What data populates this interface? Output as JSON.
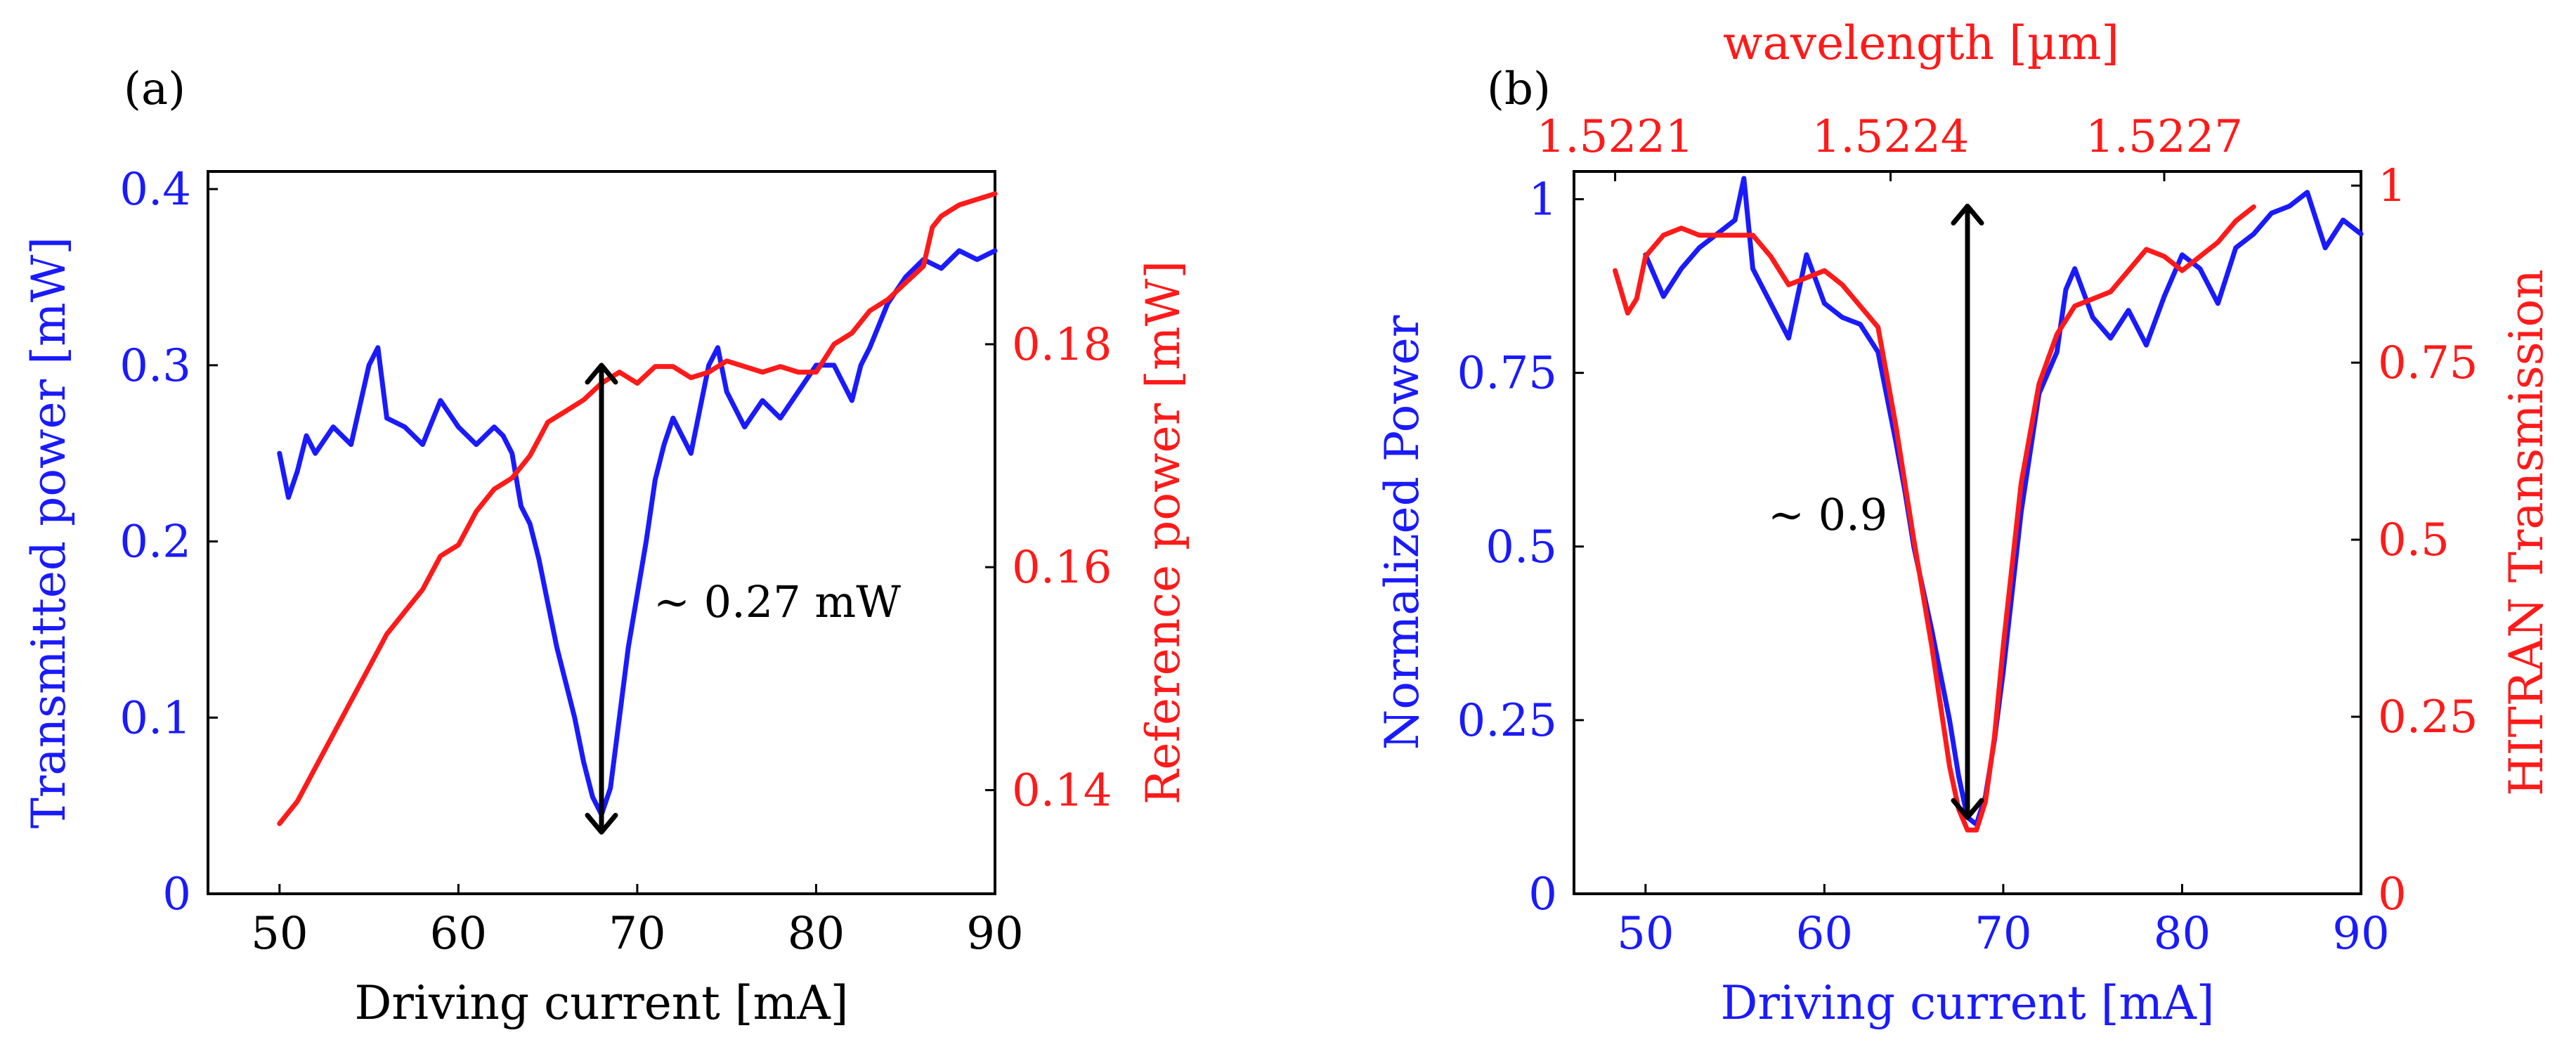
{
  "colors": {
    "blue": "#1a1aff",
    "red": "#ff1a1a",
    "black": "#000000"
  },
  "chart_data": [
    {
      "type": "line",
      "panel_label": "(a)",
      "xlabel": "Driving current [mA]",
      "ylabel_left": "Transmitted power [mW]",
      "ylabel_right": "Reference power [mW]",
      "xlim": [
        46,
        90
      ],
      "ylim_left": [
        0,
        0.41
      ],
      "ylim_right": [
        0.1307,
        0.1955
      ],
      "x_ticks": [
        50,
        60,
        70,
        80,
        90
      ],
      "x_tick_labels": [
        "50",
        "60",
        "70",
        "80",
        "90"
      ],
      "y_left_ticks": [
        0,
        0.1,
        0.2,
        0.3,
        0.4
      ],
      "y_left_tick_labels": [
        "0",
        "0.1",
        "0.2",
        "0.3",
        "0.4"
      ],
      "y_right_ticks": [
        0.14,
        0.16,
        0.18
      ],
      "y_right_tick_labels": [
        "0.14",
        "0.16",
        "0.18"
      ],
      "annotation": {
        "text": "∼ 0.27 mW",
        "x": 68,
        "y_top": 0.3,
        "y_bottom": 0.035
      },
      "series": [
        {
          "name": "Transmitted power",
          "axis": "left",
          "color": "#1a1aff",
          "x": [
            50,
            50.5,
            51,
            51.5,
            52,
            53,
            54,
            55,
            55.5,
            56,
            57,
            58,
            59,
            60,
            61,
            62,
            62.5,
            63,
            63.5,
            64,
            64.5,
            65,
            65.5,
            66,
            66.5,
            67,
            67.5,
            68,
            68.5,
            69,
            69.5,
            70,
            70.5,
            71,
            71.5,
            72,
            73,
            74,
            74.5,
            75,
            76,
            77,
            78,
            79,
            80,
            81,
            82,
            82.5,
            83,
            84,
            85,
            86,
            87,
            88,
            89,
            90
          ],
          "values": [
            0.25,
            0.225,
            0.24,
            0.26,
            0.25,
            0.265,
            0.255,
            0.3,
            0.31,
            0.27,
            0.265,
            0.255,
            0.28,
            0.265,
            0.255,
            0.265,
            0.26,
            0.25,
            0.22,
            0.21,
            0.19,
            0.165,
            0.14,
            0.12,
            0.1,
            0.075,
            0.055,
            0.045,
            0.06,
            0.1,
            0.14,
            0.17,
            0.2,
            0.235,
            0.255,
            0.27,
            0.25,
            0.3,
            0.31,
            0.285,
            0.265,
            0.28,
            0.27,
            0.285,
            0.3,
            0.3,
            0.28,
            0.3,
            0.31,
            0.335,
            0.35,
            0.36,
            0.355,
            0.365,
            0.36,
            0.365
          ]
        },
        {
          "name": "Reference power",
          "axis": "right",
          "color": "#ff1a1a",
          "x": [
            50,
            51,
            52,
            53,
            54,
            55,
            56,
            57,
            58,
            59,
            60,
            61,
            62,
            63,
            64,
            65,
            66,
            67,
            68,
            69,
            70,
            71,
            72,
            73,
            74,
            75,
            76,
            77,
            78,
            79,
            80,
            81,
            82,
            83,
            84,
            85,
            86,
            86.5,
            87,
            88,
            89,
            90
          ],
          "values": [
            0.137,
            0.139,
            0.142,
            0.145,
            0.148,
            0.151,
            0.154,
            0.156,
            0.158,
            0.161,
            0.162,
            0.165,
            0.167,
            0.168,
            0.17,
            0.173,
            0.174,
            0.175,
            0.1765,
            0.1775,
            0.1765,
            0.178,
            0.178,
            0.177,
            0.1775,
            0.1785,
            0.178,
            0.1775,
            0.178,
            0.1775,
            0.1775,
            0.18,
            0.181,
            0.183,
            0.184,
            0.1855,
            0.187,
            0.1905,
            0.1915,
            0.1925,
            0.193,
            0.1935
          ]
        }
      ]
    },
    {
      "type": "line",
      "panel_label": "(b)",
      "xlabel": "Driving current [mA]",
      "ylabel_left": "Normalized Power",
      "ylabel_right": "HITRAN Transmission",
      "top_axis_label": "wavelength [µm]",
      "top_tick_labels": [
        "1.5221",
        "1.5224",
        "1.5227"
      ],
      "top_tick_positions_mA": [
        48.3,
        63.7,
        79
      ],
      "xlim": [
        46,
        90
      ],
      "ylim_left": [
        0,
        1.04
      ],
      "ylim_right": [
        0,
        1.02
      ],
      "x_ticks": [
        50,
        60,
        70,
        80,
        90
      ],
      "x_tick_labels": [
        "50",
        "60",
        "70",
        "80",
        "90"
      ],
      "y_left_ticks": [
        0,
        0.25,
        0.5,
        0.75,
        1
      ],
      "y_left_tick_labels": [
        "0",
        "0.25",
        "0.5",
        "0.75",
        "1"
      ],
      "y_right_ticks": [
        0,
        0.25,
        0.5,
        0.75,
        1
      ],
      "y_right_tick_labels": [
        "0",
        "0.25",
        "0.5",
        "0.75",
        "1"
      ],
      "annotation": {
        "text": "∼ 0.9",
        "x": 68,
        "y_top": 0.99,
        "y_bottom": 0.11
      },
      "series": [
        {
          "name": "Normalized Power",
          "axis": "left",
          "color": "#1a1aff",
          "x": [
            50,
            51,
            52,
            53,
            54,
            55,
            55.5,
            56,
            57,
            58,
            59,
            60,
            61,
            62,
            63,
            64,
            64.5,
            65,
            66,
            67,
            67.5,
            68,
            68.5,
            69,
            69.5,
            70,
            71,
            72,
            73,
            73.5,
            74,
            75,
            76,
            77,
            78,
            79,
            80,
            81,
            82,
            83,
            84,
            85,
            86,
            87,
            88,
            89,
            90
          ],
          "values": [
            0.92,
            0.86,
            0.9,
            0.93,
            0.95,
            0.97,
            1.03,
            0.9,
            0.85,
            0.8,
            0.92,
            0.85,
            0.83,
            0.82,
            0.78,
            0.65,
            0.58,
            0.5,
            0.38,
            0.25,
            0.17,
            0.11,
            0.1,
            0.14,
            0.22,
            0.32,
            0.55,
            0.72,
            0.78,
            0.87,
            0.9,
            0.83,
            0.8,
            0.84,
            0.79,
            0.86,
            0.92,
            0.9,
            0.85,
            0.93,
            0.95,
            0.98,
            0.99,
            1.01,
            0.93,
            0.97,
            0.95
          ]
        },
        {
          "name": "HITRAN Transmission",
          "axis": "right",
          "color": "#ff1a1a",
          "x": [
            48.3,
            49,
            49.5,
            50,
            51,
            52,
            53,
            54,
            55,
            56,
            57,
            58,
            59,
            60,
            61,
            62,
            63,
            63.5,
            64,
            65,
            66,
            67,
            67.5,
            68,
            68.5,
            69,
            69.5,
            70,
            71,
            72,
            73,
            74,
            75,
            76,
            77,
            78,
            79,
            80,
            81,
            82,
            83,
            84
          ],
          "values": [
            0.88,
            0.82,
            0.84,
            0.9,
            0.93,
            0.94,
            0.93,
            0.93,
            0.93,
            0.93,
            0.9,
            0.86,
            0.87,
            0.88,
            0.86,
            0.83,
            0.8,
            0.73,
            0.66,
            0.5,
            0.35,
            0.18,
            0.12,
            0.09,
            0.09,
            0.13,
            0.22,
            0.35,
            0.58,
            0.72,
            0.79,
            0.83,
            0.84,
            0.85,
            0.88,
            0.91,
            0.9,
            0.88,
            0.9,
            0.92,
            0.95,
            0.97
          ]
        }
      ]
    }
  ]
}
